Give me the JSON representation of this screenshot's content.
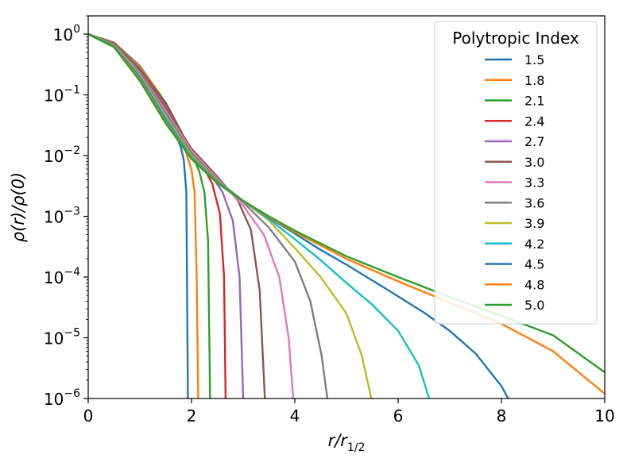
{
  "chart_data": {
    "type": "line",
    "xlabel": "r/r",
    "xlabel_sub": "1/2",
    "ylabel": "ρ(r)/ρ(0)",
    "xlim": [
      0,
      10
    ],
    "ylim": [
      1e-06,
      2
    ],
    "yscale": "log",
    "grid": false,
    "legend_placement": "top-right",
    "legend_title": "Polytropic Index",
    "x_ticks": [
      "0",
      "2",
      "4",
      "6",
      "8",
      "10"
    ],
    "y_ticks": [
      {
        "base": "10",
        "exp": "0"
      },
      {
        "base": "10",
        "exp": "−1"
      },
      {
        "base": "10",
        "exp": "−2"
      },
      {
        "base": "10",
        "exp": "−3"
      },
      {
        "base": "10",
        "exp": "−4"
      },
      {
        "base": "10",
        "exp": "−5"
      },
      {
        "base": "10",
        "exp": "−6"
      }
    ],
    "series": [
      {
        "name": "1.5",
        "color": "#1f77b4",
        "x": [
          0,
          0.5,
          1.0,
          1.3,
          1.6,
          1.8,
          1.85,
          1.9,
          1.93
        ],
        "y": [
          1.0,
          0.73,
          0.3,
          0.13,
          0.042,
          0.013,
          0.0085,
          0.0025,
          1e-06
        ]
      },
      {
        "name": "1.8",
        "color": "#ff7f0e",
        "x": [
          0,
          0.5,
          1.0,
          1.4,
          1.7,
          1.9,
          2.0,
          2.06,
          2.1,
          2.13
        ],
        "y": [
          1.0,
          0.72,
          0.29,
          0.1,
          0.032,
          0.011,
          0.0058,
          0.0025,
          0.0001,
          1e-06
        ]
      },
      {
        "name": "2.1",
        "color": "#2ca02c",
        "x": [
          0,
          0.5,
          1.0,
          1.5,
          1.8,
          2.0,
          2.15,
          2.25,
          2.32,
          2.36
        ],
        "y": [
          1.0,
          0.71,
          0.27,
          0.075,
          0.025,
          0.011,
          0.0055,
          0.0025,
          0.0004,
          1e-06
        ]
      },
      {
        "name": "2.4",
        "color": "#d62728",
        "x": [
          0,
          0.5,
          1.0,
          1.5,
          2.0,
          2.2,
          2.4,
          2.55,
          2.63,
          2.66
        ],
        "y": [
          1.0,
          0.7,
          0.26,
          0.07,
          0.012,
          0.0072,
          0.0035,
          0.0011,
          0.0001,
          1e-06
        ]
      },
      {
        "name": "2.7",
        "color": "#9467bd",
        "x": [
          0,
          0.5,
          1.0,
          1.5,
          2.0,
          2.3,
          2.6,
          2.8,
          2.93,
          3.0
        ],
        "y": [
          1.0,
          0.69,
          0.25,
          0.065,
          0.0125,
          0.006,
          0.0025,
          0.00085,
          0.0001,
          1e-06
        ]
      },
      {
        "name": "3.0",
        "color": "#8c564b",
        "x": [
          0,
          0.5,
          1.0,
          1.5,
          2.0,
          2.5,
          2.9,
          3.15,
          3.32,
          3.42
        ],
        "y": [
          1.0,
          0.68,
          0.24,
          0.06,
          0.013,
          0.0045,
          0.0018,
          0.0006,
          6e-05,
          1e-06
        ]
      },
      {
        "name": "3.3",
        "color": "#e377c2",
        "x": [
          0,
          0.5,
          1.0,
          1.5,
          2.0,
          2.5,
          3.0,
          3.4,
          3.7,
          3.88,
          3.97
        ],
        "y": [
          1.0,
          0.67,
          0.23,
          0.055,
          0.012,
          0.0042,
          0.0015,
          0.0005,
          0.0001,
          1e-05,
          1e-06
        ]
      },
      {
        "name": "3.6",
        "color": "#7f7f7f",
        "x": [
          0,
          0.5,
          1.0,
          1.5,
          2.0,
          2.5,
          3.0,
          3.5,
          4.0,
          4.3,
          4.52,
          4.63
        ],
        "y": [
          1.0,
          0.66,
          0.22,
          0.05,
          0.011,
          0.004,
          0.0017,
          0.00065,
          0.00018,
          4e-05,
          5e-06,
          1e-06
        ]
      },
      {
        "name": "3.9",
        "color": "#bcbd22",
        "x": [
          0,
          0.5,
          1.0,
          1.5,
          2.0,
          2.5,
          3.0,
          3.5,
          4.0,
          4.5,
          5.0,
          5.3,
          5.48
        ],
        "y": [
          1.0,
          0.65,
          0.21,
          0.045,
          0.01,
          0.0039,
          0.0018,
          0.00085,
          0.0003,
          0.0001,
          2.5e-05,
          5e-06,
          1e-06
        ]
      },
      {
        "name": "4.2",
        "color": "#17becf",
        "x": [
          0,
          0.5,
          1.0,
          1.5,
          2.0,
          2.5,
          3.0,
          3.5,
          4.0,
          4.5,
          5.0,
          5.5,
          6.0,
          6.4,
          6.6
        ],
        "y": [
          1.0,
          0.64,
          0.2,
          0.042,
          0.0095,
          0.0038,
          0.0018,
          0.0009,
          0.00042,
          0.00019,
          8e-05,
          3.5e-05,
          1.3e-05,
          3.5e-06,
          1e-06
        ]
      },
      {
        "name": "4.5",
        "color": "#1f77b4",
        "x": [
          0,
          0.5,
          1.0,
          1.5,
          2.0,
          2.5,
          3.0,
          3.5,
          4.0,
          4.5,
          5.0,
          5.5,
          6.0,
          6.5,
          7.0,
          7.5,
          8.0,
          8.13
        ],
        "y": [
          1.0,
          0.63,
          0.19,
          0.038,
          0.0092,
          0.0037,
          0.0018,
          0.00095,
          0.00052,
          0.00028,
          0.00016,
          8.8e-05,
          4.8e-05,
          2.6e-05,
          1.3e-05,
          5.5e-06,
          1.6e-06,
          1e-06
        ]
      },
      {
        "name": "4.8",
        "color": "#ff7f0e",
        "x": [
          0,
          0.5,
          1.0,
          1.5,
          2.0,
          2.5,
          3.0,
          3.5,
          4.0,
          5.0,
          6.0,
          7.0,
          8.0,
          9.0,
          10.0
        ],
        "y": [
          1.0,
          0.62,
          0.18,
          0.036,
          0.009,
          0.0036,
          0.0018,
          0.00097,
          0.00055,
          0.0002,
          8.5e-05,
          3.8e-05,
          1.7e-05,
          6e-06,
          1.2e-06
        ]
      },
      {
        "name": "5.0",
        "color": "#2ca02c",
        "x": [
          0,
          0.5,
          1.0,
          1.5,
          2.0,
          2.5,
          3.0,
          3.5,
          4.0,
          5.0,
          6.0,
          7.0,
          8.0,
          9.0,
          10.0
        ],
        "y": [
          1.0,
          0.61,
          0.17,
          0.034,
          0.0088,
          0.0035,
          0.0018,
          0.001,
          0.00058,
          0.00022,
          0.0001,
          4.7e-05,
          2.3e-05,
          1.1e-05,
          2.7e-06
        ]
      }
    ]
  }
}
